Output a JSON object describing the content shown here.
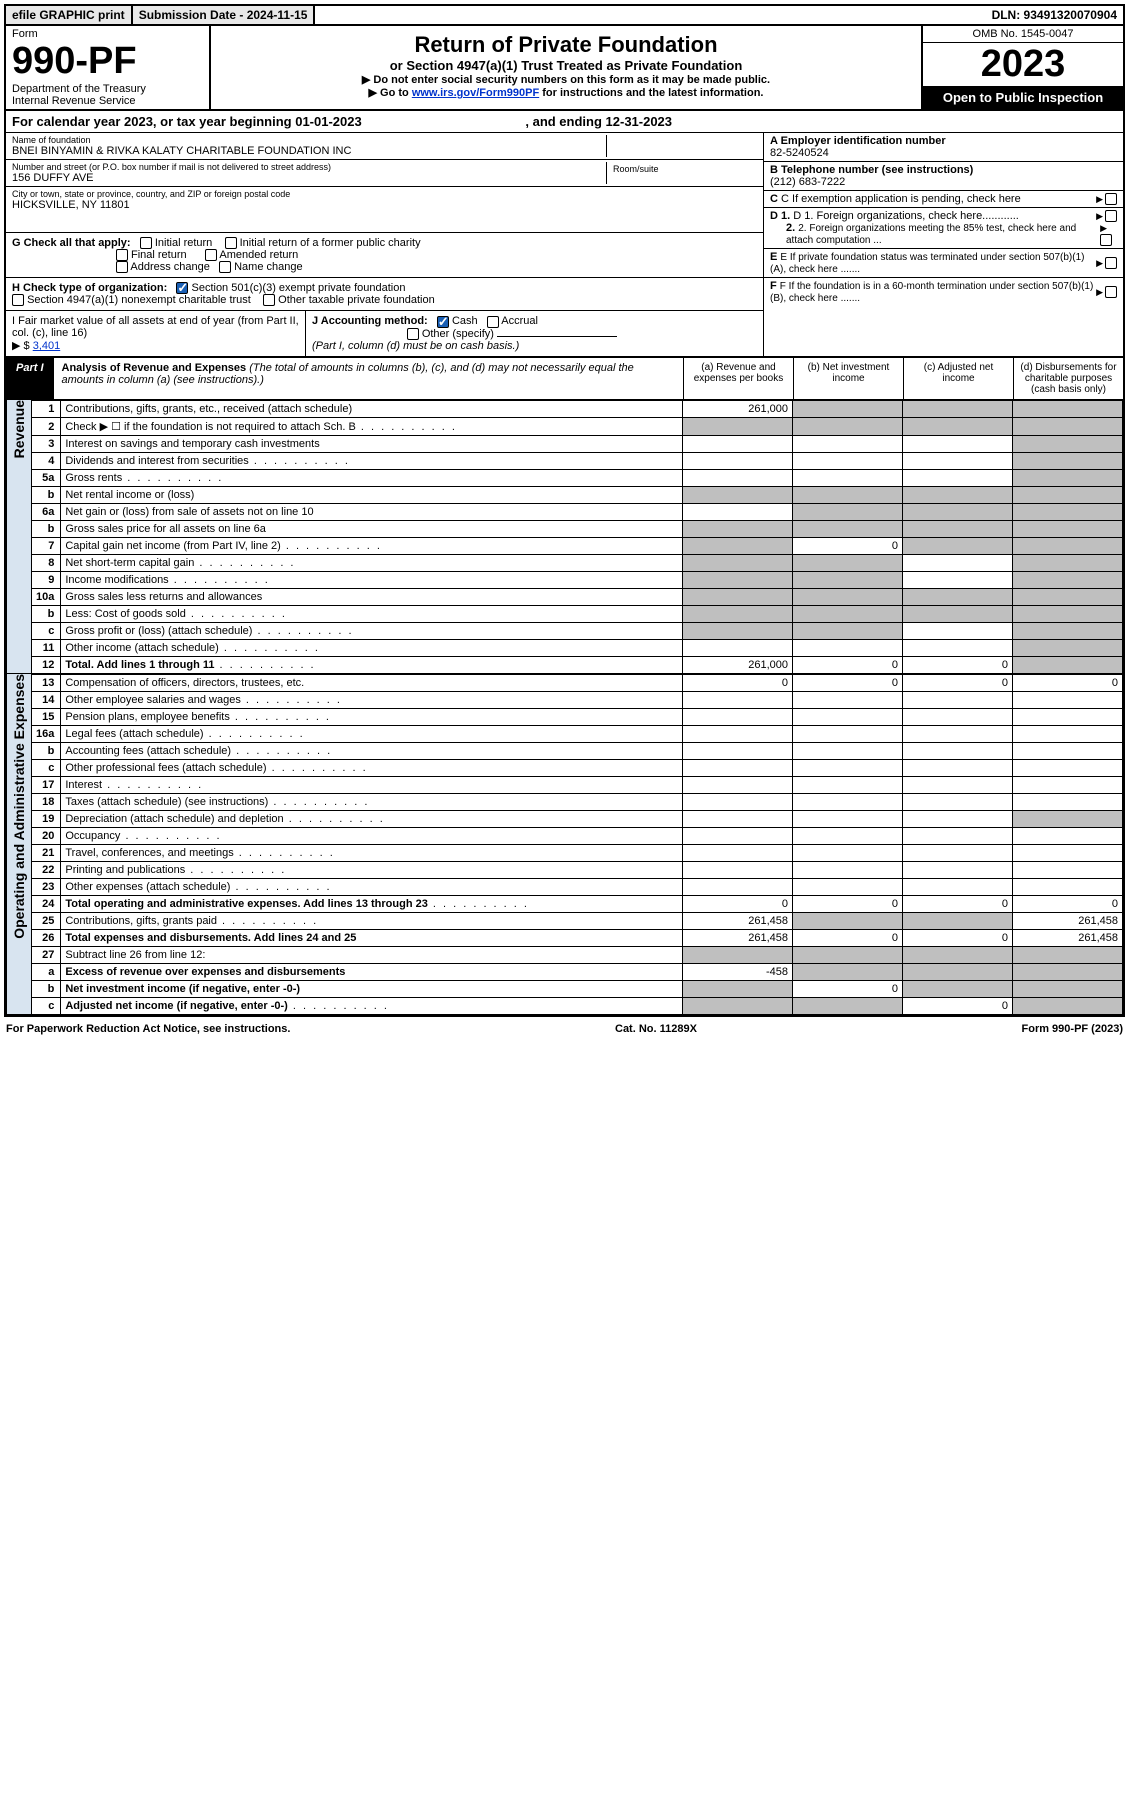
{
  "topbar": {
    "efile": "efile GRAPHIC print",
    "sub_label": "Submission Date - 2024-11-15",
    "dln": "DLN: 93491320070904"
  },
  "header": {
    "form_word": "Form",
    "form_no": "990-PF",
    "dept": "Department of the Treasury",
    "irs": "Internal Revenue Service",
    "title": "Return of Private Foundation",
    "subtitle": "or Section 4947(a)(1) Trust Treated as Private Foundation",
    "note1": "▶ Do not enter social security numbers on this form as it may be made public.",
    "note2_pre": "▶ Go to ",
    "note2_link": "www.irs.gov/Form990PF",
    "note2_post": " for instructions and the latest information.",
    "omb": "OMB No. 1545-0047",
    "year": "2023",
    "inspect": "Open to Public Inspection"
  },
  "cal_yr": {
    "pre": "For calendar year 2023, or tax year beginning 01-01-2023",
    "end": ", and ending 12-31-2023"
  },
  "entity": {
    "name_lbl": "Name of foundation",
    "name": "BNEI BINYAMIN & RIVKA KALATY CHARITABLE FOUNDATION INC",
    "addr_lbl": "Number and street (or P.O. box number if mail is not delivered to street address)",
    "addr": "156 DUFFY AVE",
    "room_lbl": "Room/suite",
    "city_lbl": "City or town, state or province, country, and ZIP or foreign postal code",
    "city": "HICKSVILLE, NY  11801",
    "ein_lbl": "A Employer identification number",
    "ein": "82-5240524",
    "tel_lbl": "B Telephone number (see instructions)",
    "tel": "(212) 683-7222",
    "c": "C If exemption application is pending, check here",
    "d1": "D 1. Foreign organizations, check here............",
    "d2": "2. Foreign organizations meeting the 85% test, check here and attach computation ...",
    "e": "E  If private foundation status was terminated under section 507(b)(1)(A), check here .......",
    "f": "F  If the foundation is in a 60-month termination under section 507(b)(1)(B), check here .......",
    "g_lbl": "G Check all that apply:",
    "g_opts": [
      "Initial return",
      "Final return",
      "Address change",
      "Initial return of a former public charity",
      "Amended return",
      "Name change"
    ],
    "h_lbl": "H Check type of organization:",
    "h_opts": [
      "Section 501(c)(3) exempt private foundation",
      "Section 4947(a)(1) nonexempt charitable trust",
      "Other taxable private foundation"
    ],
    "i_lbl": "I Fair market value of all assets at end of year (from Part II, col. (c), line 16) ",
    "i_amt_pre": "▶ $ ",
    "i_amt": "3,401",
    "j_lbl": "J Accounting method:",
    "j_opts": [
      "Cash",
      "Accrual",
      "Other (specify)"
    ],
    "j_note": "(Part I, column (d) must be on cash basis.)"
  },
  "part1": {
    "tag": "Part I",
    "title": "Analysis of Revenue and Expenses",
    "title_note": " (The total of amounts in columns (b), (c), and (d) may not necessarily equal the amounts in column (a) (see instructions).)",
    "cols": [
      "(a)   Revenue and expenses per books",
      "(b)   Net investment income",
      "(c)   Adjusted net income",
      "(d)  Disbursements for charitable purposes (cash basis only)"
    ]
  },
  "sections": {
    "revenue": "Revenue",
    "opex": "Operating and Administrative Expenses"
  },
  "rows": [
    {
      "n": "1",
      "d": "Contributions, gifts, grants, etc., received (attach schedule)",
      "a": "261,000",
      "bs": true,
      "cs": true,
      "ds": true
    },
    {
      "n": "2",
      "d": "Check ▶ ☐ if the foundation is not required to attach Sch. B",
      "as": true,
      "bs": true,
      "cs": true,
      "ds": true,
      "dots": true
    },
    {
      "n": "3",
      "d": "Interest on savings and temporary cash investments",
      "ds": true
    },
    {
      "n": "4",
      "d": "Dividends and interest from securities",
      "ds": true,
      "dots": true
    },
    {
      "n": "5a",
      "d": "Gross rents",
      "ds": true,
      "dots": true
    },
    {
      "n": "b",
      "d": "Net rental income or (loss)",
      "as": true,
      "bs": true,
      "cs": true,
      "ds": true
    },
    {
      "n": "6a",
      "d": "Net gain or (loss) from sale of assets not on line 10",
      "bs": true,
      "cs": true,
      "ds": true
    },
    {
      "n": "b",
      "d": "Gross sales price for all assets on line 6a",
      "as": true,
      "bs": true,
      "cs": true,
      "ds": true
    },
    {
      "n": "7",
      "d": "Capital gain net income (from Part IV, line 2)",
      "as": true,
      "b": "0",
      "cs": true,
      "ds": true,
      "dots": true
    },
    {
      "n": "8",
      "d": "Net short-term capital gain",
      "as": true,
      "bs": true,
      "ds": true,
      "dots": true
    },
    {
      "n": "9",
      "d": "Income modifications",
      "as": true,
      "bs": true,
      "ds": true,
      "dots": true
    },
    {
      "n": "10a",
      "d": "Gross sales less returns and allowances",
      "as": true,
      "bs": true,
      "cs": true,
      "ds": true
    },
    {
      "n": "b",
      "d": "Less: Cost of goods sold",
      "as": true,
      "bs": true,
      "cs": true,
      "ds": true,
      "dots": true
    },
    {
      "n": "c",
      "d": "Gross profit or (loss) (attach schedule)",
      "as": true,
      "bs": true,
      "ds": true,
      "dots": true
    },
    {
      "n": "11",
      "d": "Other income (attach schedule)",
      "ds": true,
      "dots": true
    },
    {
      "n": "12",
      "d": "Total. Add lines 1 through 11",
      "bold": true,
      "a": "261,000",
      "b": "0",
      "c": "0",
      "ds": true,
      "dots": true
    }
  ],
  "rows2": [
    {
      "n": "13",
      "d": "Compensation of officers, directors, trustees, etc.",
      "a": "0",
      "b": "0",
      "c": "0",
      "dv": "0"
    },
    {
      "n": "14",
      "d": "Other employee salaries and wages",
      "dots": true
    },
    {
      "n": "15",
      "d": "Pension plans, employee benefits",
      "dots": true
    },
    {
      "n": "16a",
      "d": "Legal fees (attach schedule)",
      "dots": true
    },
    {
      "n": "b",
      "d": "Accounting fees (attach schedule)",
      "dots": true
    },
    {
      "n": "c",
      "d": "Other professional fees (attach schedule)",
      "dots": true
    },
    {
      "n": "17",
      "d": "Interest",
      "dots": true
    },
    {
      "n": "18",
      "d": "Taxes (attach schedule) (see instructions)",
      "dots": true
    },
    {
      "n": "19",
      "d": "Depreciation (attach schedule) and depletion",
      "ds": true,
      "dots": true
    },
    {
      "n": "20",
      "d": "Occupancy",
      "dots": true
    },
    {
      "n": "21",
      "d": "Travel, conferences, and meetings",
      "dots": true
    },
    {
      "n": "22",
      "d": "Printing and publications",
      "dots": true
    },
    {
      "n": "23",
      "d": "Other expenses (attach schedule)",
      "dots": true
    },
    {
      "n": "24",
      "d": "Total operating and administrative expenses. Add lines 13 through 23",
      "bold": true,
      "a": "0",
      "b": "0",
      "c": "0",
      "dv": "0",
      "dots": true
    },
    {
      "n": "25",
      "d": "Contributions, gifts, grants paid",
      "a": "261,458",
      "bs": true,
      "cs": true,
      "dv": "261,458",
      "dots": true
    },
    {
      "n": "26",
      "d": "Total expenses and disbursements. Add lines 24 and 25",
      "bold": true,
      "a": "261,458",
      "b": "0",
      "c": "0",
      "dv": "261,458"
    },
    {
      "n": "27",
      "d": "Subtract line 26 from line 12:",
      "as": true,
      "bs": true,
      "cs": true,
      "ds": true
    },
    {
      "n": "a",
      "d": "Excess of revenue over expenses and disbursements",
      "bold": true,
      "a": "-458",
      "bs": true,
      "cs": true,
      "ds": true
    },
    {
      "n": "b",
      "d": "Net investment income (if negative, enter -0-)",
      "bold": true,
      "as": true,
      "b": "0",
      "cs": true,
      "ds": true
    },
    {
      "n": "c",
      "d": "Adjusted net income (if negative, enter -0-)",
      "bold": true,
      "as": true,
      "bs": true,
      "c": "0",
      "ds": true,
      "dots": true
    }
  ],
  "footer": {
    "l": "For Paperwork Reduction Act Notice, see instructions.",
    "m": "Cat. No. 11289X",
    "r": "Form 990-PF (2023)"
  }
}
